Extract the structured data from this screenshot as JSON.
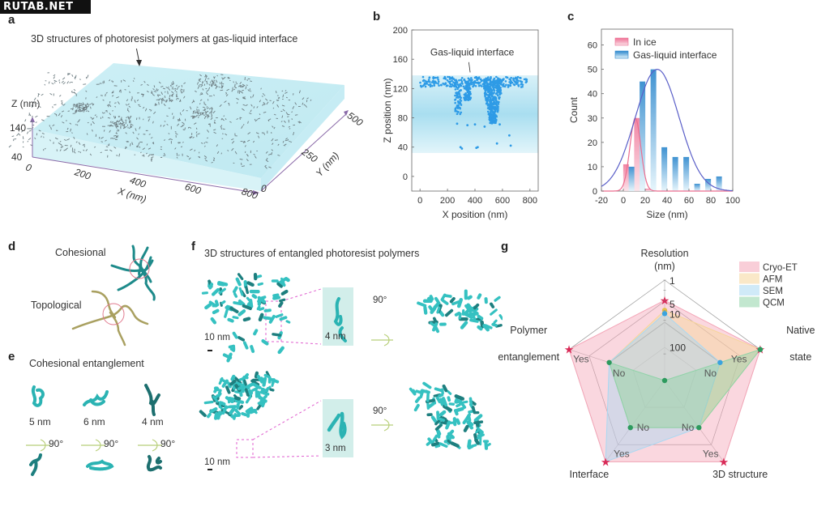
{
  "watermark": "RUTAB.NET",
  "panels": {
    "a": {
      "letter": "a",
      "title": "3D structures of photoresist polymers at gas-liquid interface",
      "z_label": "Z (nm)",
      "z_ticks": [
        "140",
        "40"
      ],
      "x_label": "X (nm)",
      "x_ticks": [
        "0",
        "200",
        "400",
        "600",
        "800"
      ],
      "y_label": "Y (nm)",
      "y_ticks": [
        "0",
        "250",
        "500"
      ]
    },
    "b": {
      "letter": "b"
    },
    "c": {
      "letter": "c"
    },
    "d": {
      "letter": "d",
      "cohesional_label": "Cohesional",
      "topological_label": "Topological"
    },
    "e": {
      "letter": "e",
      "title": "Cohesional entanglement",
      "sizes": [
        "5 nm",
        "6 nm",
        "4 nm"
      ],
      "rotation_label": "90°"
    },
    "f": {
      "letter": "f",
      "title": "3D structures of entangled photoresist polymers",
      "scale_bar": "10 nm",
      "inset_top": "4 nm",
      "inset_bottom": "3 nm",
      "rotation_label": "90°"
    },
    "g": {
      "letter": "g"
    }
  },
  "chart_data": [
    {
      "id": "b",
      "type": "scatter",
      "title": "",
      "annotation": "Gas-liquid interface",
      "xlabel": "X position (nm)",
      "ylabel": "Z position (nm)",
      "xlim": [
        -60,
        860
      ],
      "ylim": [
        -20,
        200
      ],
      "x_ticks": [
        0,
        200,
        400,
        600,
        800
      ],
      "y_ticks": [
        0,
        40,
        80,
        120,
        160,
        200
      ],
      "band": {
        "zmin": 32,
        "zmax": 138
      },
      "clusters": [
        {
          "desc": "interface layer",
          "x": [
            0,
            780
          ],
          "z": [
            122,
            136
          ]
        },
        {
          "desc": "left column",
          "x": [
            250,
            300
          ],
          "z": [
            82,
            128
          ]
        },
        {
          "desc": "center-left column",
          "x": [
            320,
            370
          ],
          "z": [
            104,
            128
          ]
        },
        {
          "desc": "main column",
          "x": [
            450,
            610
          ],
          "z": [
            72,
            134
          ]
        }
      ],
      "points": [
        [
          270,
          72
        ],
        [
          345,
          70
        ],
        [
          400,
          71
        ],
        [
          470,
          68
        ],
        [
          580,
          71
        ],
        [
          295,
          40
        ],
        [
          305,
          38
        ],
        [
          410,
          39
        ],
        [
          420,
          40
        ],
        [
          560,
          45
        ],
        [
          660,
          42
        ],
        [
          650,
          56
        ],
        [
          660,
          128
        ],
        [
          700,
          128
        ]
      ]
    },
    {
      "id": "c",
      "type": "bar",
      "title": "",
      "xlabel": "Size (nm)",
      "ylabel": "Count",
      "xlim": [
        -20,
        100
      ],
      "ylim": [
        0,
        65
      ],
      "x_ticks": [
        -20,
        0,
        20,
        40,
        60,
        80,
        100
      ],
      "y_ticks": [
        0,
        10,
        20,
        30,
        40,
        50,
        60
      ],
      "legend": [
        "In ice",
        "Gas-liquid interface"
      ],
      "legend_position": "top-left",
      "series": [
        {
          "name": "In ice",
          "color": "#f07fa0",
          "centers": [
            2.5,
            12.5,
            22.5
          ],
          "values": [
            11,
            30,
            1
          ],
          "fit": {
            "mean": 11,
            "sd": 5,
            "peak": 30
          }
        },
        {
          "name": "Gas-liquid interface",
          "color": "#2d8fd0",
          "centers": [
            7.5,
            17.5,
            27.5,
            37.5,
            47.5,
            57.5,
            67.5,
            77.5,
            87.5
          ],
          "values": [
            10,
            45,
            50,
            18,
            14,
            14,
            3,
            5,
            6
          ],
          "fit": {
            "mean": 31,
            "sd": 20,
            "peak": 50
          }
        }
      ]
    },
    {
      "id": "g",
      "type": "radar",
      "title": "",
      "axes": [
        {
          "label": "Resolution (nm)",
          "ticks": [
            "1",
            "5",
            "10",
            "100"
          ]
        },
        {
          "label": "Native state"
        },
        {
          "label": "3D structure"
        },
        {
          "label": "Interface"
        },
        {
          "label": "Polymer entanglement"
        }
      ],
      "legend": [
        "Cryo-ET",
        "AFM",
        "SEM",
        "QCM"
      ],
      "legend_position": "top-right",
      "series": [
        {
          "name": "Cryo-ET",
          "color": "#f4a6b8",
          "values": {
            "resolution_nm": 4,
            "native_state": "Yes",
            "3d_structure": "Yes",
            "interface": "Yes",
            "polymer_entanglement": "Yes"
          }
        },
        {
          "name": "AFM",
          "color": "#f6d69a",
          "values": {
            "resolution_nm": 8,
            "native_state": "Yes",
            "3d_structure": "No",
            "interface": "No",
            "polymer_entanglement": "No"
          }
        },
        {
          "name": "SEM",
          "color": "#a9d8f2",
          "values": {
            "resolution_nm": 10,
            "native_state": "No",
            "3d_structure": "No",
            "interface": "Yes",
            "polymer_entanglement": "No"
          }
        },
        {
          "name": "QCM",
          "color": "#8fd3a8",
          "values": {
            "resolution_nm": 1000,
            "native_state": "Yes",
            "3d_structure": "No",
            "interface": "No",
            "polymer_entanglement": "No"
          }
        }
      ],
      "point_labels": {
        "yes": "Yes",
        "no": "No"
      }
    }
  ]
}
